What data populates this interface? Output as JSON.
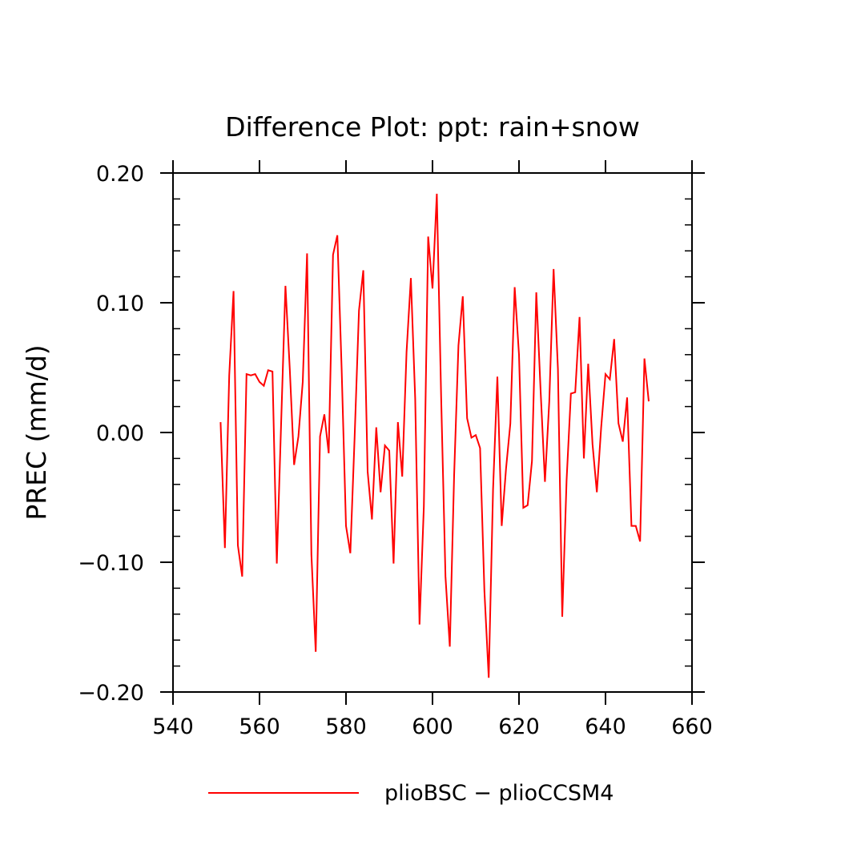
{
  "chart_data": {
    "type": "line",
    "title": "Difference Plot: ppt: rain+snow",
    "xlabel": "",
    "ylabel": "PREC  (mm/d)",
    "xlim": [
      540,
      660
    ],
    "ylim": [
      -0.2,
      0.2
    ],
    "x_ticks": [
      540,
      560,
      580,
      600,
      620,
      640,
      660
    ],
    "x_tick_labels": [
      "540",
      "560",
      "580",
      "600",
      "620",
      "640",
      "660"
    ],
    "y_ticks": [
      -0.2,
      -0.1,
      0.0,
      0.1,
      0.2
    ],
    "y_tick_labels": [
      "−0.20",
      "−0.10",
      "0.00",
      "0.10",
      "0.20"
    ],
    "grid": false,
    "legend": "bottom",
    "series": [
      {
        "name": "plioBSC − plioCCSM4",
        "color": "#ff0000",
        "x": [
          551,
          552,
          553,
          554,
          555,
          556,
          557,
          558,
          559,
          560,
          561,
          562,
          563,
          564,
          565,
          566,
          567,
          568,
          569,
          570,
          571,
          572,
          573,
          574,
          575,
          576,
          577,
          578,
          579,
          580,
          581,
          582,
          583,
          584,
          585,
          586,
          587,
          588,
          589,
          590,
          591,
          592,
          593,
          594,
          595,
          596,
          597,
          598,
          599,
          600,
          601,
          602,
          603,
          604,
          605,
          606,
          607,
          608,
          609,
          610,
          611,
          612,
          613,
          614,
          615,
          616,
          617,
          618,
          619,
          620,
          621,
          622,
          623,
          624,
          625,
          626,
          627,
          628,
          629,
          630,
          631,
          632,
          633,
          634,
          635,
          636,
          637,
          638,
          639,
          640,
          641,
          642,
          643,
          644,
          645,
          646,
          647,
          648,
          649,
          650
        ],
        "y": [
          0.008,
          -0.089,
          0.044,
          0.109,
          -0.087,
          -0.111,
          0.045,
          0.044,
          0.045,
          0.039,
          0.036,
          0.048,
          0.047,
          -0.101,
          0.007,
          0.113,
          0.049,
          -0.025,
          -0.003,
          0.039,
          0.138,
          -0.094,
          -0.169,
          -0.003,
          0.014,
          -0.016,
          0.137,
          0.152,
          0.048,
          -0.072,
          -0.093,
          -0.003,
          0.094,
          0.125,
          -0.03,
          -0.067,
          0.004,
          -0.046,
          -0.01,
          -0.014,
          -0.101,
          0.008,
          -0.034,
          0.062,
          0.119,
          0.026,
          -0.148,
          -0.057,
          0.151,
          0.111,
          0.184,
          0.027,
          -0.111,
          -0.165,
          -0.033,
          0.067,
          0.105,
          0.011,
          -0.004,
          -0.002,
          -0.012,
          -0.122,
          -0.189,
          -0.044,
          0.043,
          -0.072,
          -0.028,
          0.007,
          0.112,
          0.06,
          -0.058,
          -0.056,
          -0.022,
          0.108,
          0.032,
          -0.038,
          0.024,
          0.126,
          0.049,
          -0.142,
          -0.037,
          0.03,
          0.031,
          0.089,
          -0.02,
          0.053,
          -0.009,
          -0.046,
          0.004,
          0.045,
          0.041,
          0.072,
          0.007,
          -0.007,
          0.027,
          -0.072,
          -0.072,
          -0.084,
          0.057,
          0.024
        ]
      }
    ]
  }
}
